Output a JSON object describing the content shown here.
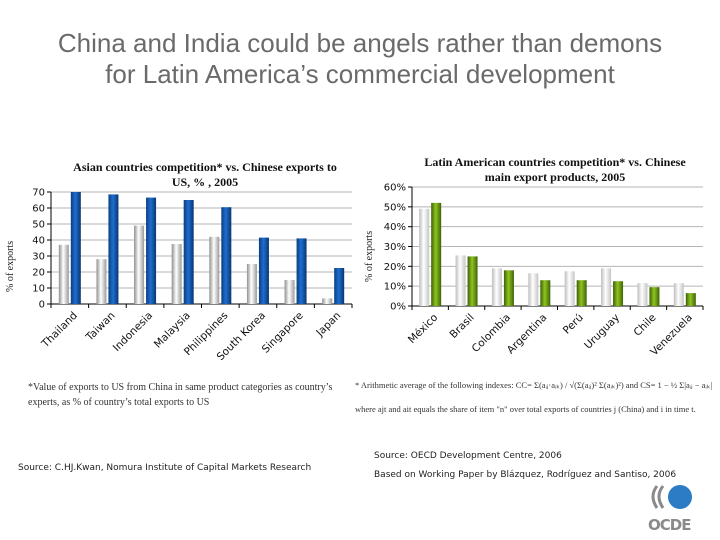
{
  "slide": {
    "title_line1": "China and India could be angels rather than demons",
    "title_line2": "for Latin America’s commercial development"
  },
  "chart_data": [
    {
      "id": "asia",
      "type": "bar",
      "title_line1": "Asian countries competition* vs. Chinese exports to",
      "title_line2": "US, % , 2005",
      "xlabel": "",
      "ylabel": "% of exports",
      "ylim": [
        0,
        70
      ],
      "yticks": [
        0,
        10,
        20,
        30,
        40,
        50,
        60,
        70
      ],
      "ytick_labels": [
        "0",
        "10",
        "20",
        "30",
        "40",
        "50",
        "60",
        "70"
      ],
      "grid": true,
      "legend": "none",
      "categories": [
        "Thailand",
        "Taiwan",
        "Indonesia",
        "Malaysia",
        "Philippines",
        "South Korea",
        "Singapore",
        "Japan"
      ],
      "series": [
        {
          "name": "Series 1 (grey)",
          "color": "#c8c8c8",
          "values": [
            37,
            28,
            49,
            37.5,
            42,
            25,
            15,
            3.5
          ]
        },
        {
          "name": "Series 2 (blue)",
          "color": "#1f5fb4",
          "values": [
            70,
            68.5,
            66.5,
            65,
            60.5,
            41.5,
            41,
            22.5
          ]
        }
      ]
    },
    {
      "id": "latam",
      "type": "bar",
      "title_line1": "Latin American countries competition*  vs. Chinese",
      "title_line2": "main export products, 2005",
      "xlabel": "",
      "ylabel": "% of exports",
      "ylim": [
        0,
        60
      ],
      "yticks": [
        0,
        10,
        20,
        30,
        40,
        50,
        60
      ],
      "ytick_labels": [
        "0%",
        "10%",
        "20%",
        "30%",
        "40%",
        "50%",
        "60%"
      ],
      "grid": true,
      "legend": "none",
      "categories": [
        "México",
        "Brasil",
        "Colombia",
        "Argentina",
        "Perú",
        "Uruguay",
        "Chile",
        "Venezuela"
      ],
      "series": [
        {
          "name": "Series 1 (grey)",
          "color": "#d8d8d8",
          "values": [
            49,
            25.5,
            19,
            16.5,
            17.5,
            19,
            11.5,
            11.5
          ]
        },
        {
          "name": "Series 2 (green)",
          "color": "#7fb51e",
          "values": [
            52,
            25,
            18,
            13,
            13,
            12.5,
            9.5,
            6.5
          ]
        }
      ]
    }
  ],
  "notes": {
    "asia_footnote": "*Value of exports to US from China in same product categories as country’s experts, as % of country’s total exports to US",
    "latam_footnote_line1": "* Arithmetic average of the following indexes: CC= Σ(aᵢⱼ·aᵢₖ) / √(Σ(aᵢⱼ)² Σ(aᵢₖ)²)   and CS= 1 − ½ Σ|aᵢⱼ − aᵢₖ|",
    "latam_footnote_line2": "where ajt and ait equals the share of item \"n\" over total exports of countries j (China) and i in time t.",
    "source_left": "Source: C.HJ.Kwan, Nomura Institute of Capital Markets Research",
    "source_right_line1": "Source: OECD Development Centre, 2006",
    "source_right_line2": "Based on Working Paper by Blázquez, Rodríguez and Santiso, 2006"
  },
  "logo": {
    "text": "OCDE",
    "circle_color": "#2b7cc4",
    "gray_color": "#8a8a8a"
  }
}
